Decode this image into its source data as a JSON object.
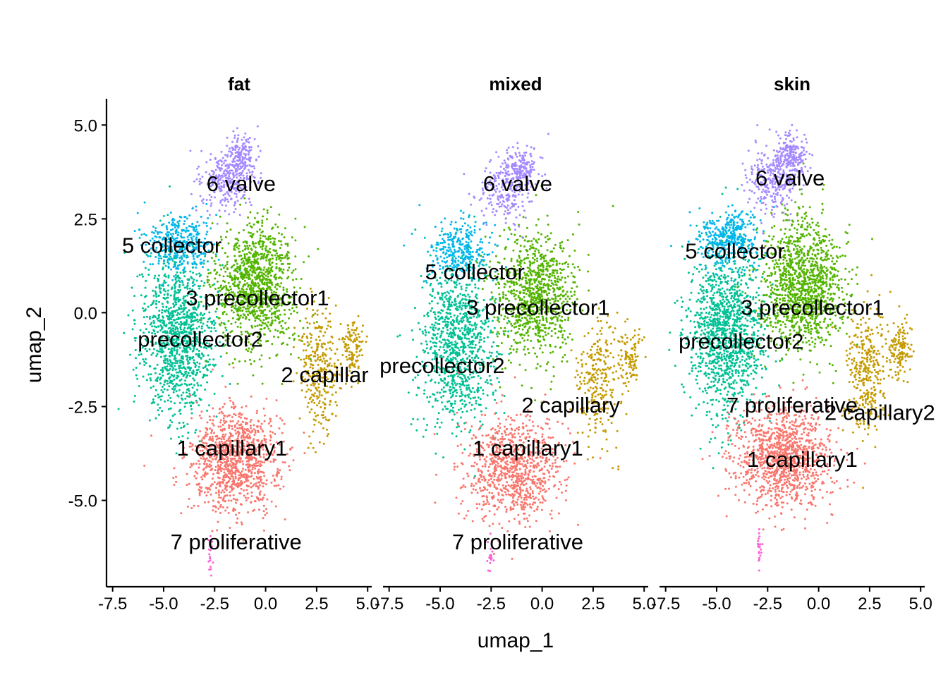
{
  "chart_data": {
    "type": "scatter",
    "xlabel": "umap_1",
    "ylabel": "umap_2",
    "xlim": [
      -7.8,
      5.2
    ],
    "ylim": [
      -7.3,
      5.7
    ],
    "x_ticks": [
      "-7.5",
      "-5.0",
      "-2.5",
      "0.0",
      "2.5",
      "5.0"
    ],
    "x_tick_values": [
      -7.5,
      -5.0,
      -2.5,
      0.0,
      2.5,
      5.0
    ],
    "y_ticks": [
      "5.0",
      "2.5",
      "0.0",
      "-2.5",
      "-5.0"
    ],
    "y_tick_values": [
      5.0,
      2.5,
      0.0,
      -2.5,
      -5.0
    ],
    "clusters": [
      {
        "id": "1",
        "color": "#F8766D"
      },
      {
        "id": "2",
        "color": "#C49A00"
      },
      {
        "id": "3",
        "color": "#53B400"
      },
      {
        "id": "4",
        "color": "#00C094"
      },
      {
        "id": "5",
        "color": "#00B6EB"
      },
      {
        "id": "6",
        "color": "#A58AFF"
      },
      {
        "id": "7",
        "color": "#FB61D7"
      }
    ],
    "panels": [
      {
        "title": "fat",
        "labels": [
          {
            "text": "6 valve",
            "x": -1.2,
            "y": 3.45
          },
          {
            "text": "5 collector",
            "x": -4.6,
            "y": 1.8
          },
          {
            "text": "3 precollector1",
            "x": -0.4,
            "y": 0.4
          },
          {
            "text": "precollector2",
            "x": -3.2,
            "y": -0.7
          },
          {
            "text": "2 capillar",
            "x": 2.9,
            "y": -1.65
          },
          {
            "text": "1 capillary1",
            "x": -1.65,
            "y": -3.6
          },
          {
            "text": "7 proliferative",
            "x": -1.45,
            "y": -6.1
          }
        ]
      },
      {
        "title": "mixed",
        "labels": [
          {
            "text": "6 valve",
            "x": -1.2,
            "y": 3.45
          },
          {
            "text": "5 collector",
            "x": -3.3,
            "y": 1.1
          },
          {
            "text": "3 precollector1",
            "x": -0.2,
            "y": 0.15
          },
          {
            "text": "precollector2",
            "x": -4.9,
            "y": -1.4
          },
          {
            "text": "2 capillary",
            "x": 1.4,
            "y": -2.45
          },
          {
            "text": "1 capillary1",
            "x": -0.7,
            "y": -3.6
          },
          {
            "text": "7 proliferative",
            "x": -1.2,
            "y": -6.1
          }
        ]
      },
      {
        "title": "skin",
        "labels": [
          {
            "text": "6 valve",
            "x": -1.4,
            "y": 3.6
          },
          {
            "text": "5 collector",
            "x": -4.1,
            "y": 1.65
          },
          {
            "text": "3 precollector1",
            "x": -0.3,
            "y": 0.15
          },
          {
            "text": "precollector2",
            "x": -3.8,
            "y": -0.75
          },
          {
            "text": "7 proliferative",
            "x": -1.3,
            "y": -2.45
          },
          {
            "text": "2 capillary2",
            "x": 3.0,
            "y": -2.65
          },
          {
            "text": "1 capillary1",
            "x": -0.8,
            "y": -3.9
          }
        ]
      }
    ]
  }
}
